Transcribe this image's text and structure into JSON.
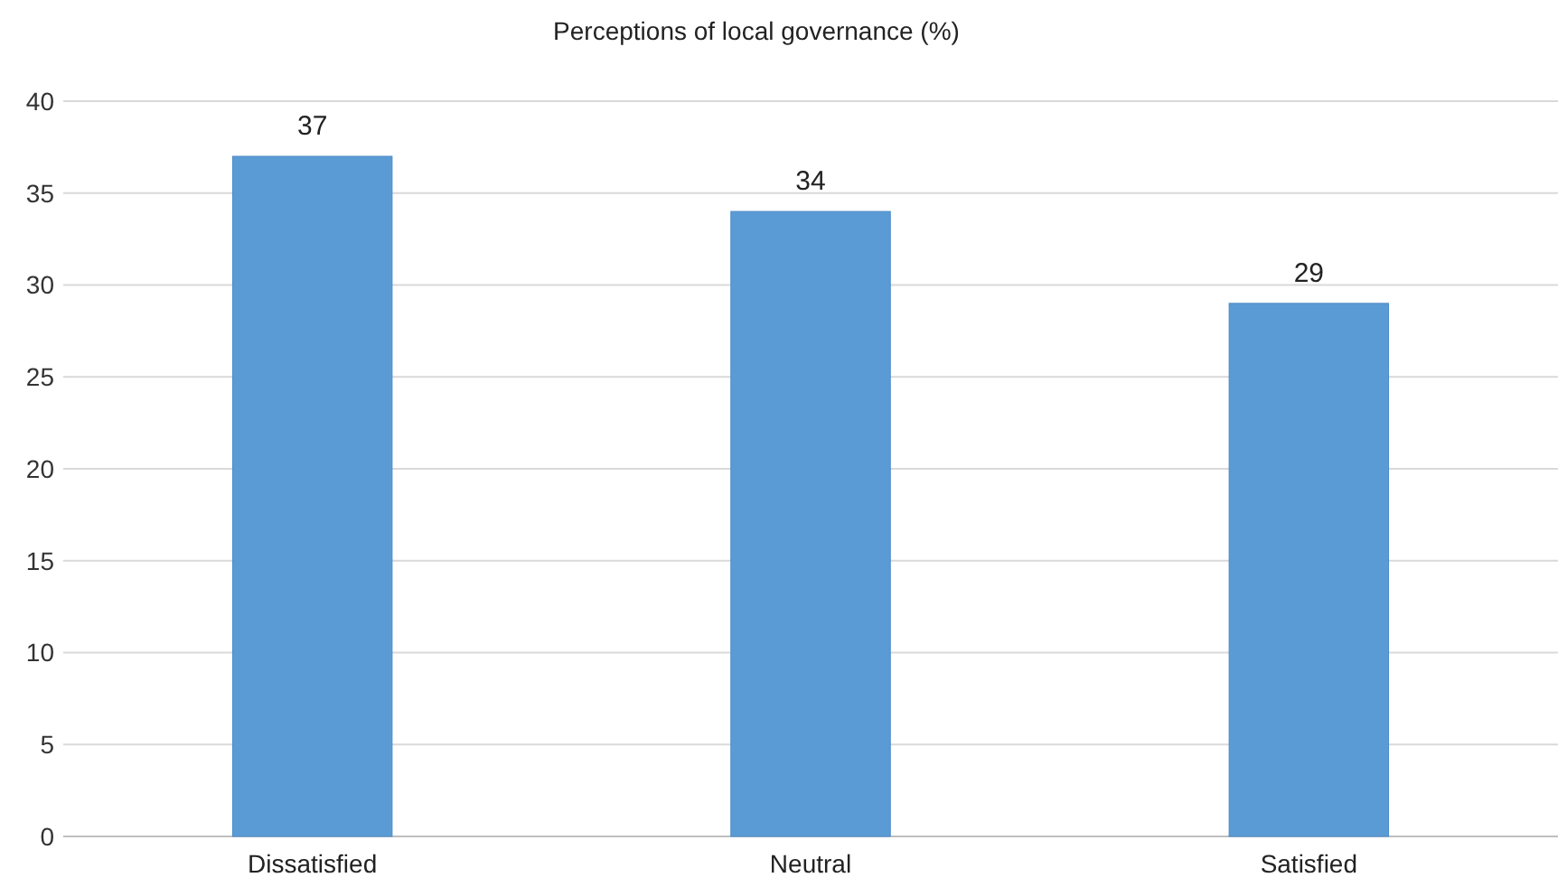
{
  "chart_data": {
    "type": "bar",
    "title": "Perceptions of local governance (%)",
    "categories": [
      "Dissatisfied",
      "Neutral",
      "Satisfied"
    ],
    "values": [
      37,
      34,
      29
    ],
    "color": "#5b9bd5",
    "ylim": [
      0,
      40
    ],
    "yticks": [
      0,
      5,
      10,
      15,
      20,
      25,
      30,
      35,
      40
    ],
    "grid": "y",
    "data_labels": true
  }
}
